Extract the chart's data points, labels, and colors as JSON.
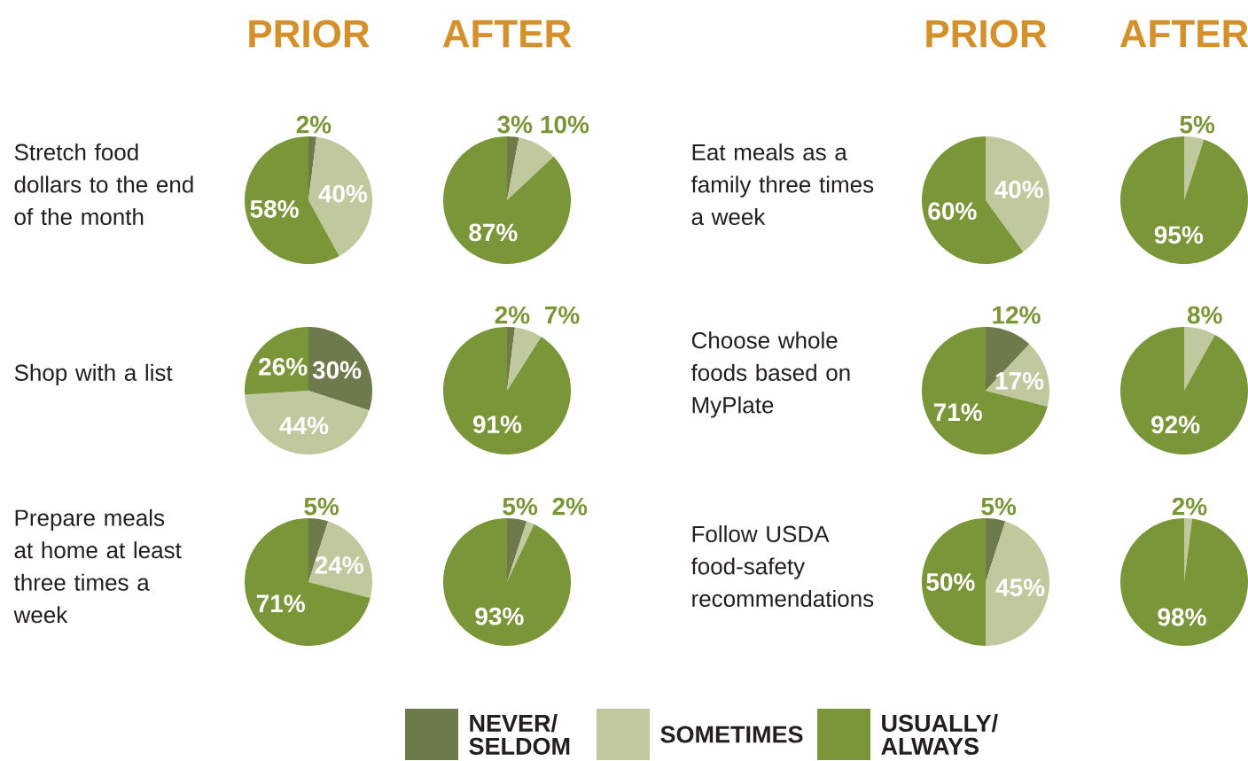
{
  "chart_data": [
    {
      "type": "other",
      "title": "Stretch food dollars to the end of the month"
    },
    {
      "type": "pie",
      "title": "PRIOR",
      "categories": [
        null,
        null,
        null
      ],
      "values": [
        2,
        40,
        58
      ],
      "colors": [
        "#6d7a4b",
        "#bfc99d",
        "#7b9539"
      ],
      "value_labels": [
        "2%",
        "40%",
        "58%"
      ]
    },
    {
      "type": "pie",
      "title": "AFTER",
      "categories": [
        null,
        null,
        null
      ],
      "values": [
        3,
        10,
        87
      ],
      "colors": [
        "#6d7a4b",
        "#bfc99d",
        "#7b9539"
      ],
      "value_labels": [
        "3%",
        "10%",
        "87%"
      ]
    },
    {
      "type": "other",
      "title": "Shop with a list"
    },
    {
      "type": "pie",
      "categories": [
        null,
        null,
        null
      ],
      "values": [
        30,
        44,
        26
      ],
      "colors": [
        "#6d7a4b",
        "#bfc99d",
        "#7b9539"
      ],
      "value_labels": [
        "30%",
        "44%",
        "26%"
      ]
    },
    {
      "type": "pie",
      "categories": [
        null,
        null,
        null
      ],
      "values": [
        2,
        7,
        91
      ],
      "colors": [
        "#6d7a4b",
        "#bfc99d",
        "#7b9539"
      ],
      "value_labels": [
        "2%",
        "7%",
        "91%"
      ]
    },
    {
      "type": "other",
      "title": "Prepare meals at home at least three times a week"
    },
    {
      "type": "pie",
      "categories": [
        null,
        null,
        null
      ],
      "values": [
        5,
        24,
        71
      ],
      "colors": [
        "#6d7a4b",
        "#bfc99d",
        "#7b9539"
      ],
      "value_labels": [
        "5%",
        "24%",
        "71%"
      ]
    },
    {
      "type": "pie",
      "categories": [
        null,
        null,
        null
      ],
      "values": [
        5,
        2,
        93
      ],
      "colors": [
        "#6d7a4b",
        "#bfc99d",
        "#7b9539"
      ],
      "value_labels": [
        "5%",
        "2%",
        "93%"
      ]
    },
    {
      "type": "other",
      "title": "Eat meals as a family three times a week"
    },
    {
      "type": "pie",
      "title": "PRIOR",
      "categories": [
        null,
        null,
        null
      ],
      "values": [
        0,
        40,
        60
      ],
      "colors": [
        "#6d7a4b",
        "#bfc99d",
        "#7b9539"
      ],
      "value_labels": [
        null,
        "40%",
        "60%"
      ]
    },
    {
      "type": "pie",
      "title": "AFTER",
      "categories": [
        null,
        null,
        null
      ],
      "values": [
        0,
        5,
        95
      ],
      "colors": [
        "#6d7a4b",
        "#bfc99d",
        "#7b9539"
      ],
      "value_labels": [
        null,
        "5%",
        "95%"
      ]
    },
    {
      "type": "other",
      "title": "Choose whole foods based on MyPlate"
    },
    {
      "type": "pie",
      "categories": [
        null,
        null,
        null
      ],
      "values": [
        12,
        17,
        71
      ],
      "colors": [
        "#6d7a4b",
        "#bfc99d",
        "#7b9539"
      ],
      "value_labels": [
        "12%",
        "17%",
        "71%"
      ]
    },
    {
      "type": "pie",
      "categories": [
        null,
        null,
        null
      ],
      "values": [
        0,
        8,
        92
      ],
      "colors": [
        "#6d7a4b",
        "#bfc99d",
        "#7b9539"
      ],
      "value_labels": [
        null,
        "8%",
        "92%"
      ]
    },
    {
      "type": "other",
      "title": "Follow USDA food-safety recommendations"
    },
    {
      "type": "pie",
      "categories": [
        null,
        null,
        null
      ],
      "values": [
        5,
        45,
        50
      ],
      "colors": [
        "#6d7a4b",
        "#bfc99d",
        "#7b9539"
      ],
      "value_labels": [
        "5%",
        "45%",
        "50%"
      ]
    },
    {
      "type": "pie",
      "categories": [
        "NEVER/ SELDOM",
        "SOMETIMES",
        "USUALLY/ ALWAYS"
      ],
      "values": [
        0,
        2,
        98
      ],
      "colors": [
        "#6d7a4b",
        "#bfc99d",
        "#7b9539"
      ],
      "value_labels": [
        null,
        "2%",
        "98%"
      ],
      "legend": "bottom"
    }
  ]
}
